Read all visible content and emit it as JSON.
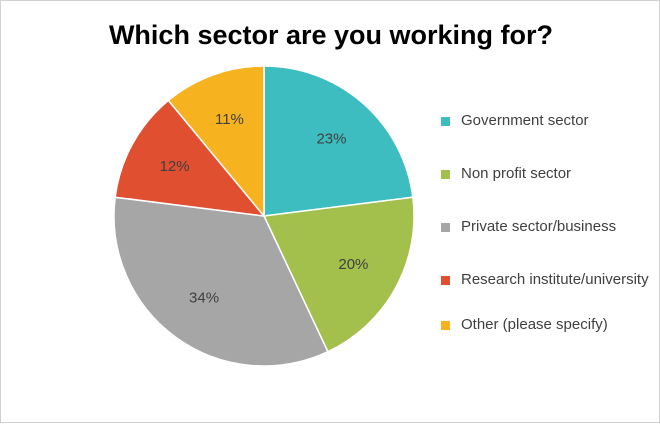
{
  "chart_data": {
    "type": "pie",
    "title": "Which sector are you working for?",
    "categories": [
      "Government sector",
      "Non profit sector",
      "Private sector/business",
      "Research institute/university",
      "Other (please specify)"
    ],
    "values": [
      23,
      20,
      34,
      12,
      11
    ],
    "value_labels": [
      "23%",
      "20%",
      "34%",
      "12%",
      "11%"
    ],
    "colors": [
      "#3dbdbf",
      "#a3bf4c",
      "#a6a6a6",
      "#e04f2f",
      "#f6b21f"
    ],
    "legend": "right"
  }
}
